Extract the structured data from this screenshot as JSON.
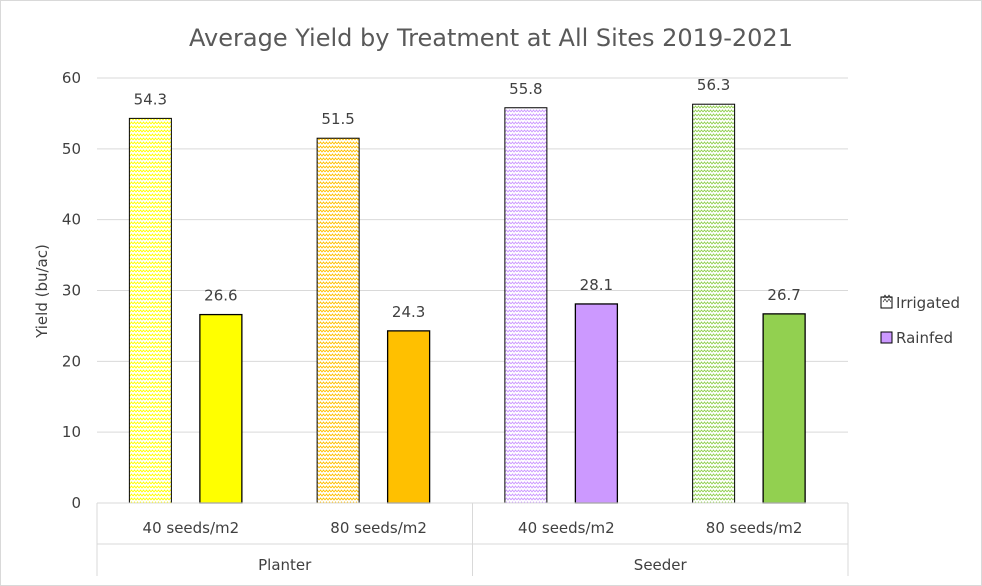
{
  "chart_data": {
    "type": "bar",
    "title": "Average Yield by Treatment at All Sites 2019-2021",
    "ylabel": "Yield (bu/ac)",
    "xlabel": "",
    "ylim": [
      0,
      60
    ],
    "yticks": [
      0,
      10,
      20,
      30,
      40,
      50,
      60
    ],
    "grid": true,
    "legend_position": "right",
    "groups": [
      {
        "label": "Planter",
        "categories": [
          "40 seeds/m2",
          "80 seeds/m2"
        ]
      },
      {
        "label": "Seeder",
        "categories": [
          "40 seeds/m2",
          "80 seeds/m2"
        ]
      }
    ],
    "categories": [
      "40 seeds/m2",
      "80 seeds/m2",
      "40 seeds/m2",
      "80 seeds/m2"
    ],
    "series": [
      {
        "name": "Irrigated",
        "values": [
          54.3,
          51.5,
          55.8,
          56.3
        ],
        "labels": [
          "54.3",
          "51.5",
          "55.8",
          "56.3"
        ],
        "pattern": "zigzag"
      },
      {
        "name": "Rainfed",
        "values": [
          26.6,
          24.3,
          28.1,
          26.7
        ],
        "labels": [
          "26.6",
          "24.3",
          "28.1",
          "26.7"
        ],
        "pattern": "solid"
      }
    ],
    "category_colors": [
      "#ffff00",
      "#ffc000",
      "#cc99ff",
      "#92d050"
    ],
    "legend_colors": {
      "Irrigated": "#000000",
      "Rainfed": "#cc99ff"
    }
  }
}
